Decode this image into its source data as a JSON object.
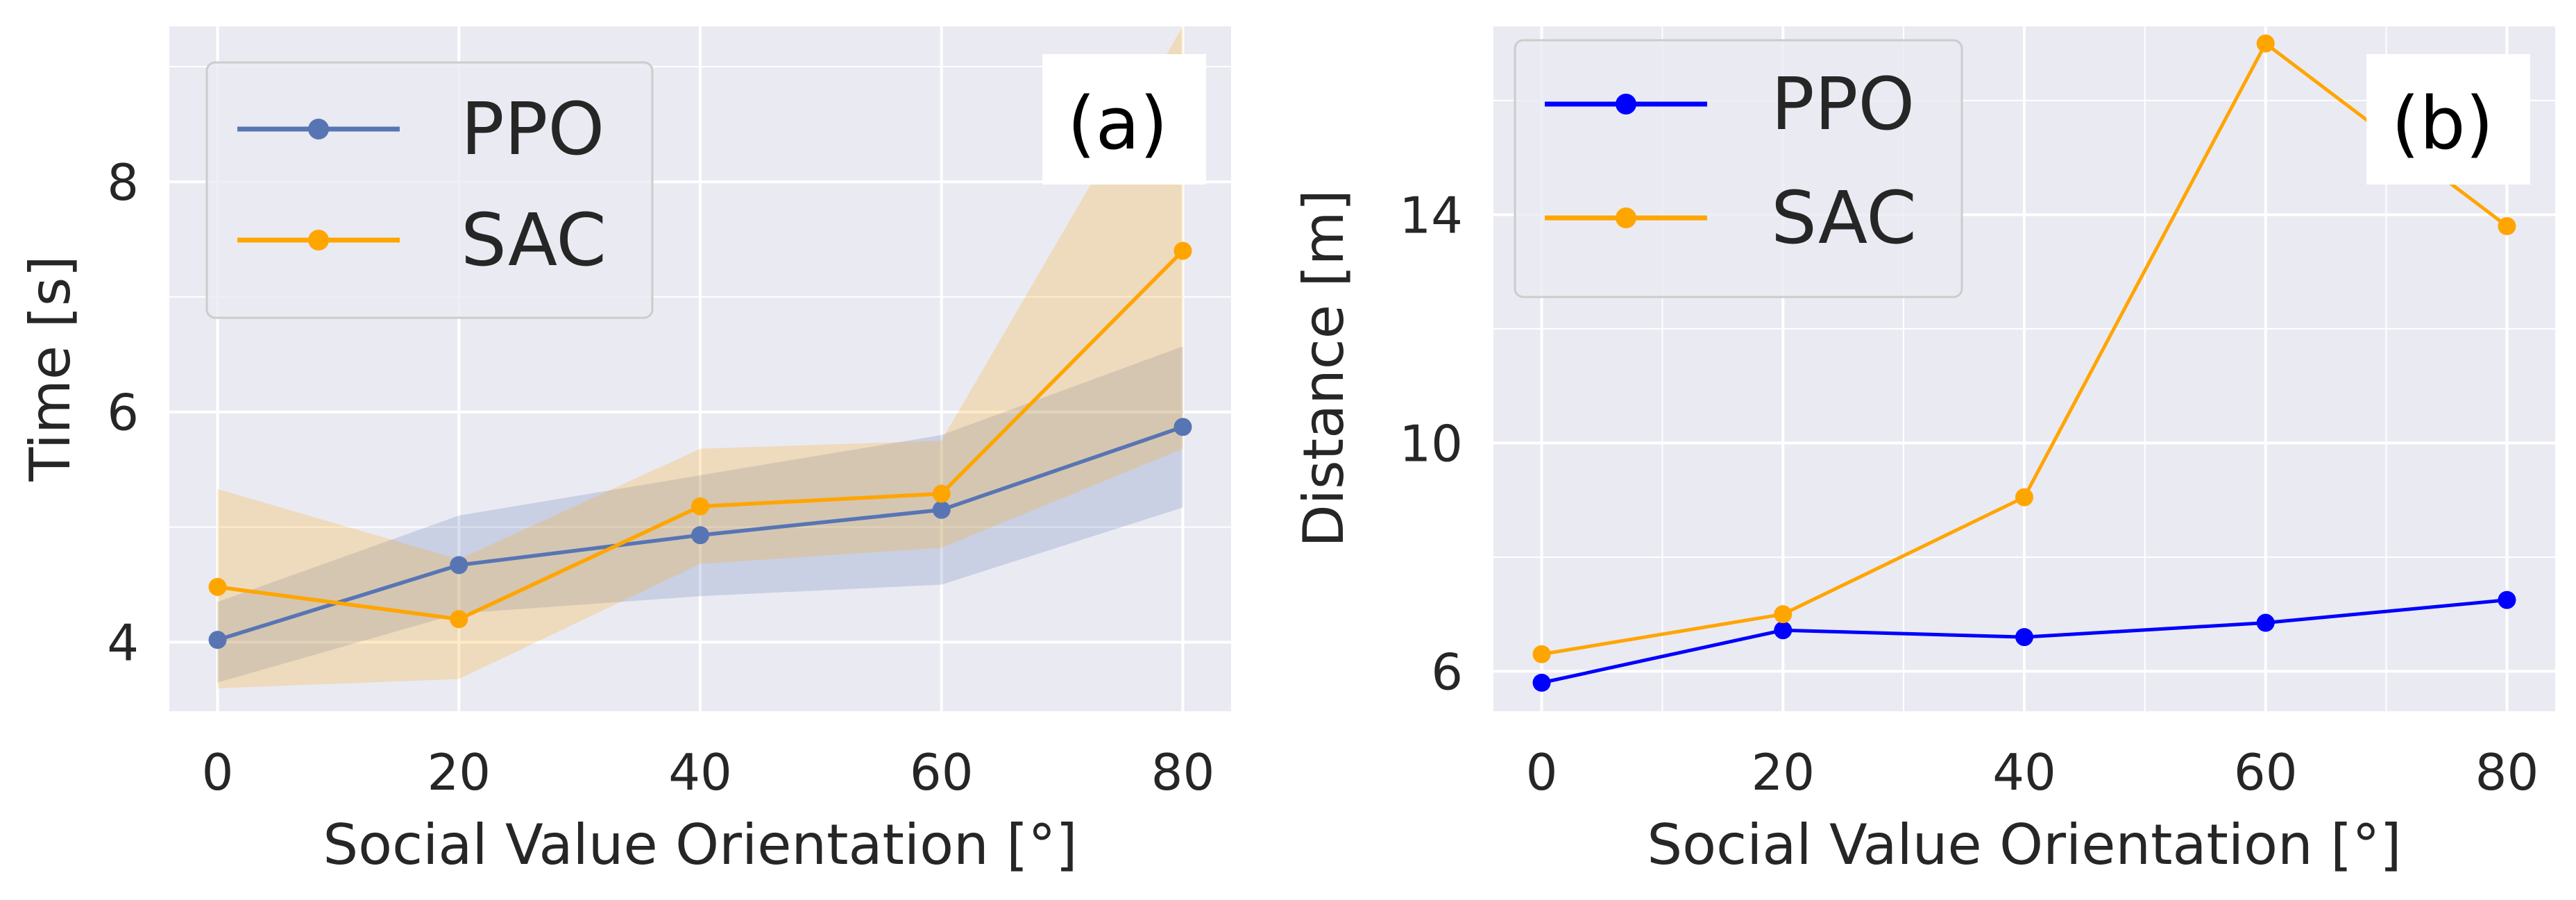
{
  "chart_data": [
    {
      "panel": "(a)",
      "type": "line",
      "xlabel": "Social Value Orientation [°]",
      "ylabel": "Time [s]",
      "x": [
        0,
        20,
        40,
        60,
        80
      ],
      "xlim": [
        -4,
        84
      ],
      "ylim": [
        3.4,
        9.35
      ],
      "xticks": [
        "0",
        "20",
        "40",
        "60",
        "80"
      ],
      "yticks": [
        "4",
        "6",
        "8"
      ],
      "grid": true,
      "legend_position": "top-left",
      "series": [
        {
          "name": "PPO",
          "color": "#5875b3",
          "values": [
            4.02,
            4.67,
            4.93,
            5.15,
            5.87
          ],
          "band_low": [
            3.65,
            4.25,
            4.4,
            4.5,
            5.17
          ],
          "band_high": [
            4.35,
            5.1,
            5.45,
            5.8,
            6.57
          ]
        },
        {
          "name": "SAC",
          "color": "#ffa500",
          "values": [
            4.48,
            4.2,
            5.18,
            5.29,
            7.4
          ],
          "band_low": [
            3.6,
            3.68,
            4.68,
            4.82,
            5.68
          ],
          "band_high": [
            5.33,
            4.72,
            5.68,
            5.75,
            9.35
          ]
        }
      ]
    },
    {
      "panel": "(b)",
      "type": "line",
      "xlabel": "Social Value Orientation [°]",
      "ylabel": "Distance [m]",
      "x": [
        0,
        20,
        40,
        60,
        80
      ],
      "xlim": [
        -4,
        84
      ],
      "ylim": [
        5.3,
        17.3
      ],
      "xticks": [
        "0",
        "20",
        "40",
        "60",
        "80"
      ],
      "yticks": [
        "6",
        "10",
        "14"
      ],
      "grid": true,
      "legend_position": "top-left",
      "series": [
        {
          "name": "PPO",
          "color": "#0000ff",
          "values": [
            5.8,
            6.72,
            6.6,
            6.85,
            7.25
          ]
        },
        {
          "name": "SAC",
          "color": "#ffa500",
          "values": [
            6.3,
            7.0,
            9.05,
            17.0,
            13.8
          ]
        }
      ]
    }
  ]
}
